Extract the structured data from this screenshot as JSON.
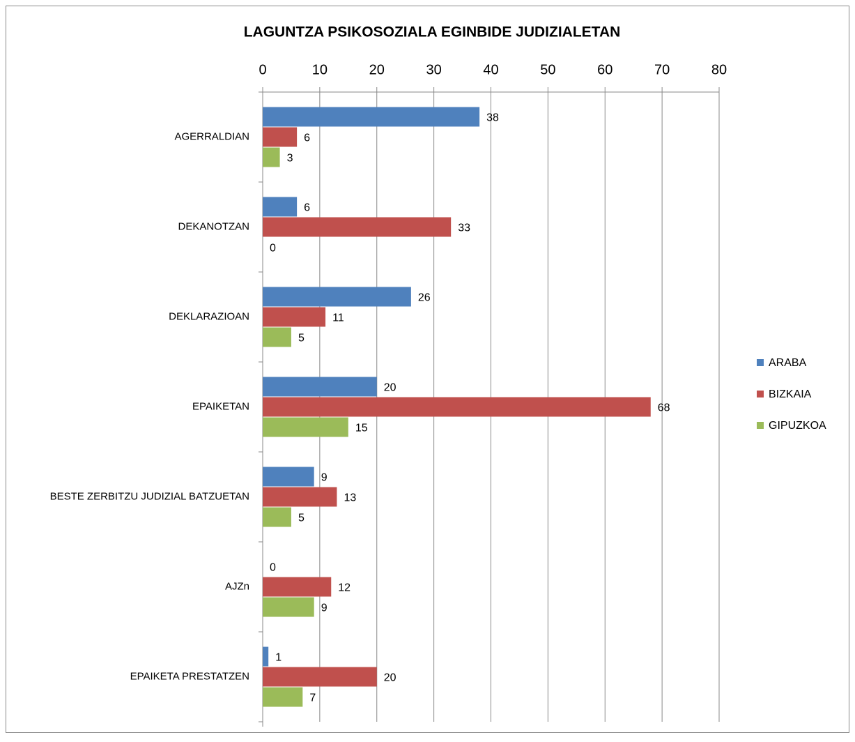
{
  "chart_data": {
    "type": "barh",
    "title": "LAGUNTZA PSIKOSOZIALA EGINBIDE JUDIZIALETAN",
    "categories": [
      "AGERRALDIAN",
      "DEKANOTZAN",
      "DEKLARAZIOAN",
      "EPAIKETAN",
      "BESTE ZERBITZU JUDIZIAL BATZUETAN",
      "AJZn",
      "EPAIKETA PRESTATZEN"
    ],
    "series": [
      {
        "name": "ARABA",
        "color": "#4f81bd",
        "values": [
          38,
          6,
          26,
          20,
          9,
          0,
          1
        ]
      },
      {
        "name": "BIZKAIA",
        "color": "#c0504d",
        "values": [
          6,
          33,
          11,
          68,
          13,
          12,
          20
        ]
      },
      {
        "name": "GIPUZKOA",
        "color": "#9bbb59",
        "values": [
          3,
          0,
          5,
          15,
          5,
          9,
          7
        ]
      }
    ],
    "xlim": [
      0,
      80
    ],
    "xticks": [
      0,
      10,
      20,
      30,
      40,
      50,
      60,
      70,
      80
    ],
    "grid": true,
    "legend": "right"
  }
}
